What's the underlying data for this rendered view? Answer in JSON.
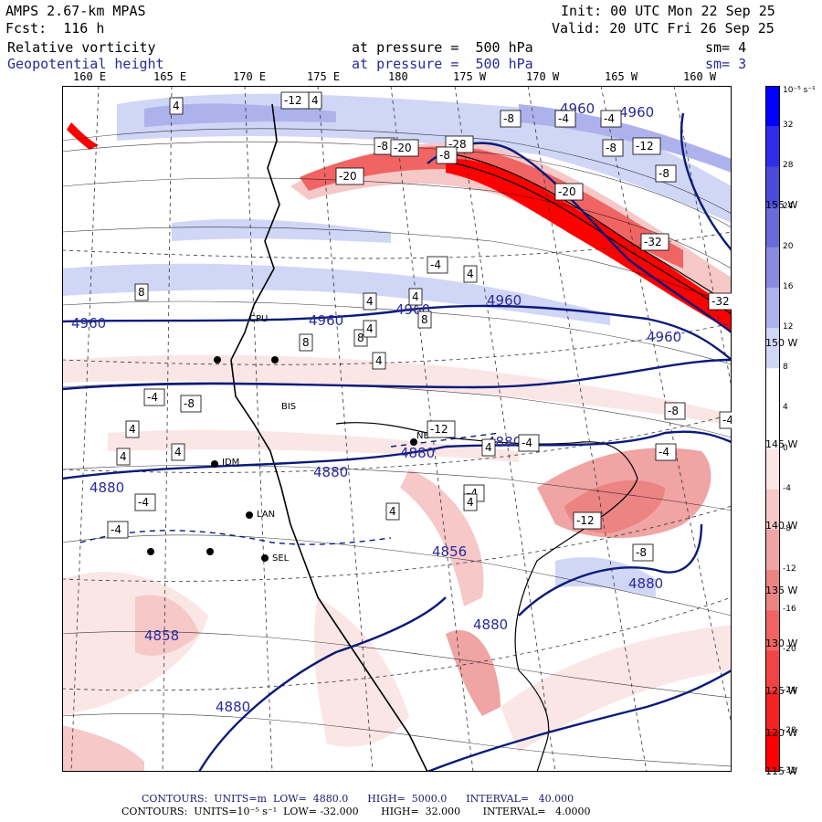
{
  "header": {
    "model": "AMPS 2.67-km MPAS",
    "fcst": "Fcst:  116 h",
    "init": "Init: 00 UTC Mon 22 Sep 25",
    "valid": "Valid: 20 UTC Fri 26 Sep 25",
    "field1_name": "Relative vorticity",
    "field1_level": "at pressure =  500 hPa",
    "field1_sm": "sm= 4",
    "field2_name": "Geopotential height",
    "field2_level": "at pressure =  500 hPa",
    "field2_sm": "sm= 3"
  },
  "longitude_labels": [
    "160 E",
    "165 E",
    "170 E",
    "175 E",
    "180",
    "175 W",
    "170 W",
    "165 W",
    "160 W"
  ],
  "latitude_labels": [
    "155 W",
    "150 W",
    "145 W",
    "140 W",
    "135 W",
    "130 W",
    "125 W",
    "120 W",
    "115 W"
  ],
  "colorbar": {
    "unit_label": "10⁻⁵ s⁻¹",
    "tick_labels": [
      "32",
      "28",
      "24",
      "20",
      "16",
      "12",
      "8",
      "4",
      "0",
      "-4",
      "-8",
      "-12",
      "-16",
      "-20",
      "-24",
      "-28",
      "-32"
    ],
    "colors": [
      "#0000ff",
      "#2d2de8",
      "#4b4bd8",
      "#6a6ad8",
      "#8a8ae0",
      "#aeb2ec",
      "#d0d6f6",
      "#ffffff",
      "#ffffff",
      "#fbe6e6",
      "#f6c8c8",
      "#f0a4a4",
      "#ec8484",
      "#f06464",
      "#f24444",
      "#f62222",
      "#ff0000"
    ]
  },
  "stations": [
    "BIS",
    "IDM",
    "LAN",
    "SEL",
    "CPU",
    "NE"
  ],
  "height_contour_labels": [
    "4960",
    "4960",
    "4960",
    "4960",
    "4960",
    "4960",
    "4960",
    "4880",
    "4880",
    "4880",
    "4880",
    "4880",
    "4880",
    "4856",
    "4858",
    "4880"
  ],
  "vorticity_labels": [
    "4",
    "4",
    "-12",
    "-20",
    "-8",
    "-20",
    "-28",
    "-8",
    "-20",
    "-8",
    "-32",
    "-32",
    "-12",
    "-8",
    "-4",
    "-4",
    "-8",
    "-12",
    "-8",
    "-4",
    "-4",
    "-8",
    "-4",
    "-4",
    "-12",
    "-8",
    "8",
    "4",
    "4",
    "8",
    "8",
    "4",
    "4",
    "4",
    "8",
    "4",
    "-4",
    "4",
    "4",
    "4",
    "-4",
    "-4",
    "4",
    "4",
    "-4"
  ],
  "footer": {
    "line1": "CONTOURS:  UNITS=m  LOW=  4880.0      HIGH=  5000.0      INTERVAL=   40.000",
    "line2": "CONTOURS:  UNITS=10⁻⁵ s⁻¹  LOW= -32.000       HIGH=  32.000       INTERVAL=   4.0000"
  }
}
